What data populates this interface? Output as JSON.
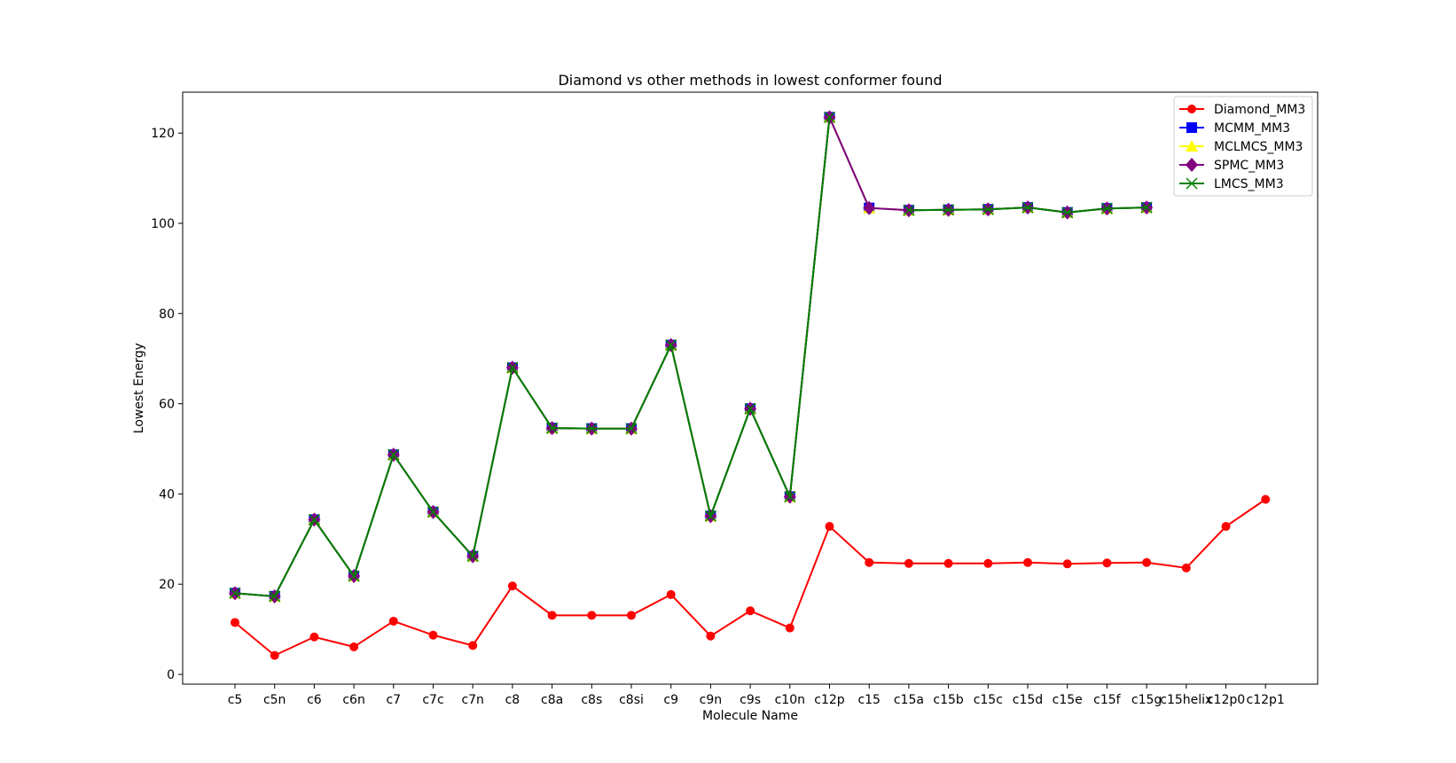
{
  "chart_data": {
    "type": "line",
    "title": "Diamond vs other methods in lowest conformer found",
    "xlabel": "Molecule Name",
    "ylabel": "Lowest Energy",
    "categories": [
      "c5",
      "c5n",
      "c6",
      "c6n",
      "c7",
      "c7c",
      "c7n",
      "c8",
      "c8a",
      "c8s",
      "c8si",
      "c9",
      "c9n",
      "c9s",
      "c10n",
      "c12p",
      "c15",
      "c15a",
      "c15b",
      "c15c",
      "c15d",
      "c15e",
      "c15f",
      "c15g",
      "c15helix",
      "c12p0",
      "c12p1"
    ],
    "ylim": [
      -2,
      129
    ],
    "yticks": [
      0,
      20,
      40,
      60,
      80,
      100,
      120
    ],
    "grid": false,
    "legend_position": "top-right",
    "series": [
      {
        "name": "Diamond_MM3",
        "color": "#ff0000",
        "marker": "circle",
        "values": [
          11.5,
          4.2,
          8.3,
          6.1,
          11.8,
          8.7,
          6.4,
          19.6,
          13.1,
          13.1,
          13.1,
          17.7,
          8.5,
          14.1,
          10.3,
          32.8,
          24.8,
          24.6,
          24.6,
          24.6,
          24.8,
          24.5,
          24.7,
          24.8,
          23.6,
          32.8,
          38.8
        ]
      },
      {
        "name": "MCMM_MM3",
        "color": "#0000ff",
        "marker": "square",
        "values": [
          18.0,
          17.3,
          34.3,
          21.8,
          48.7,
          36.0,
          26.2,
          68.0,
          54.6,
          54.5,
          54.5,
          73.0,
          35.1,
          58.9,
          39.4,
          123.5,
          103.4,
          102.9,
          103.0,
          103.1,
          103.5,
          102.4,
          103.3,
          103.5,
          null,
          null,
          null
        ]
      },
      {
        "name": "MCLMCS_MM3",
        "color": "#ffff00",
        "marker": "triangle",
        "values": [
          18.0,
          17.3,
          34.3,
          21.8,
          48.7,
          36.0,
          26.2,
          68.0,
          54.6,
          54.5,
          54.5,
          73.0,
          35.1,
          58.9,
          39.4,
          123.5,
          103.4,
          102.9,
          103.0,
          103.1,
          103.5,
          102.4,
          103.3,
          103.5,
          null,
          null,
          null
        ]
      },
      {
        "name": "SPMC_MM3",
        "color": "#800080",
        "marker": "diamond",
        "values": [
          18.0,
          17.3,
          34.3,
          21.8,
          48.7,
          36.0,
          26.2,
          68.0,
          54.6,
          54.5,
          54.5,
          73.0,
          35.1,
          58.9,
          39.4,
          123.5,
          103.4,
          102.9,
          103.0,
          103.1,
          103.5,
          102.4,
          103.3,
          103.5,
          null,
          null,
          null
        ]
      },
      {
        "name": "LMCS_MM3",
        "color": "#008000",
        "marker": "x",
        "values": [
          18.0,
          17.3,
          34.3,
          21.8,
          48.7,
          36.0,
          26.2,
          68.0,
          54.6,
          54.5,
          54.5,
          73.0,
          35.1,
          58.9,
          39.4,
          123.5,
          null,
          102.9,
          103.0,
          103.1,
          103.5,
          102.4,
          103.3,
          103.5,
          null,
          null,
          null
        ]
      }
    ]
  }
}
